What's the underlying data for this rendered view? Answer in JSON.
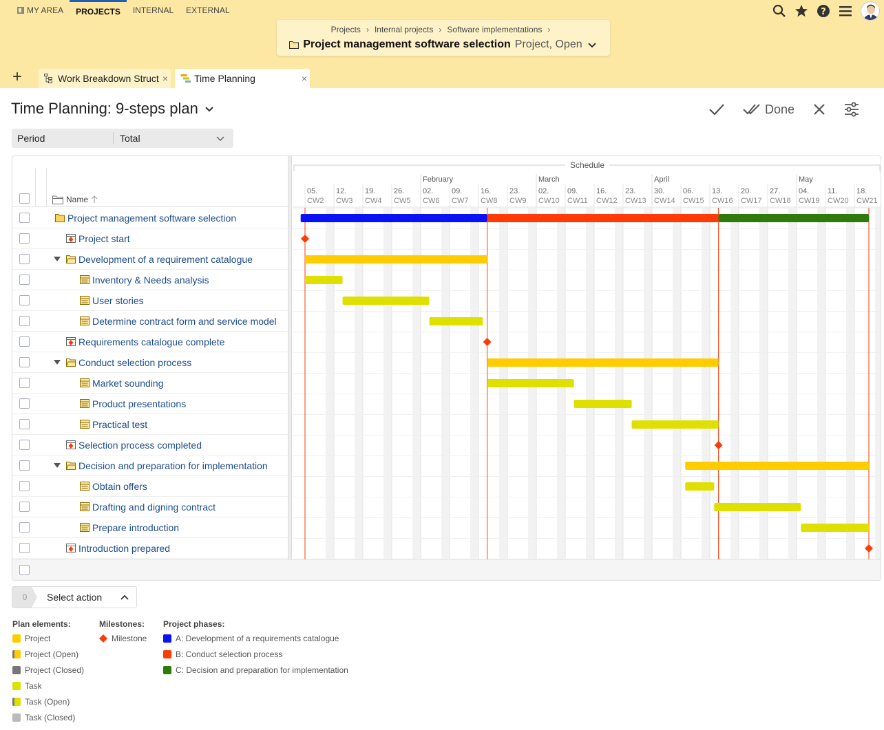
{
  "nav": {
    "items": [
      "MY AREA",
      "PROJECTS",
      "INTERNAL",
      "EXTERNAL"
    ],
    "active": "PROJECTS",
    "icons": [
      "search-icon",
      "star-icon",
      "help-icon",
      "menu-icon",
      "avatar"
    ]
  },
  "breadcrumb": {
    "items": [
      "Projects",
      "Internal projects",
      "Software implementations"
    ],
    "sep": "›",
    "title": "Project management software selection",
    "status": "Project, Open"
  },
  "tabs": [
    {
      "label": "Work Breakdown Struct",
      "close": "×"
    },
    {
      "label": "Time Planning",
      "close": "×"
    }
  ],
  "tab_add": "+",
  "view": {
    "title": "Time Planning: 9-steps plan",
    "done_label": "Done",
    "period_label": "Period",
    "period_value": "Total"
  },
  "grid": {
    "name_header": "Name",
    "schedule_label": "Schedule",
    "months": [
      {
        "label": "February",
        "week": 4
      },
      {
        "label": "March",
        "week": 8
      },
      {
        "label": "April",
        "week": 12
      },
      {
        "label": "May",
        "week": 17
      }
    ],
    "weeks": [
      {
        "d": "05.",
        "cw": "CW2"
      },
      {
        "d": "12.",
        "cw": "CW3"
      },
      {
        "d": "19.",
        "cw": "CW4"
      },
      {
        "d": "26.",
        "cw": "CW5"
      },
      {
        "d": "02.",
        "cw": "CW6"
      },
      {
        "d": "09.",
        "cw": "CW7"
      },
      {
        "d": "16.",
        "cw": "CW8"
      },
      {
        "d": "23.",
        "cw": "CW9"
      },
      {
        "d": "02.",
        "cw": "CW10"
      },
      {
        "d": "09.",
        "cw": "CW11"
      },
      {
        "d": "16.",
        "cw": "CW12"
      },
      {
        "d": "23.",
        "cw": "CW13"
      },
      {
        "d": "30.",
        "cw": "CW14"
      },
      {
        "d": "06.",
        "cw": "CW15"
      },
      {
        "d": "13.",
        "cw": "CW16"
      },
      {
        "d": "20.",
        "cw": "CW17"
      },
      {
        "d": "27.",
        "cw": "CW18"
      },
      {
        "d": "04.",
        "cw": "CW19"
      },
      {
        "d": "11.",
        "cw": "CW20"
      },
      {
        "d": "18.",
        "cw": "CW21"
      }
    ],
    "rows": [
      {
        "label": "Project management software selection",
        "kind": "project",
        "level": 0
      },
      {
        "label": "Project start",
        "kind": "milestone",
        "level": 1
      },
      {
        "label": "Development of a requirement catalogue",
        "kind": "group",
        "level": 1
      },
      {
        "label": "Inventory & Needs analysis",
        "kind": "task",
        "level": 2
      },
      {
        "label": "User stories",
        "kind": "task",
        "level": 2
      },
      {
        "label": "Determine contract form and service model",
        "kind": "task",
        "level": 2
      },
      {
        "label": "Requirements catalogue complete",
        "kind": "milestone",
        "level": 1
      },
      {
        "label": "Conduct selection process",
        "kind": "group",
        "level": 1
      },
      {
        "label": "Market sounding",
        "kind": "task",
        "level": 2
      },
      {
        "label": "Product presentations",
        "kind": "task",
        "level": 2
      },
      {
        "label": "Practical test",
        "kind": "task",
        "level": 2
      },
      {
        "label": "Selection process completed",
        "kind": "milestone",
        "level": 1
      },
      {
        "label": "Decision and preparation for implementation",
        "kind": "group",
        "level": 1
      },
      {
        "label": "Obtain offers",
        "kind": "task",
        "level": 2
      },
      {
        "label": "Drafting and digning contract",
        "kind": "task",
        "level": 2
      },
      {
        "label": "Prepare introduction",
        "kind": "task",
        "level": 2
      },
      {
        "label": "Introduction prepared",
        "kind": "milestone",
        "level": 1
      }
    ]
  },
  "chart_data": {
    "type": "gantt",
    "unit": "weeks from 05. (CW2)",
    "phases": [
      {
        "name": "A: Development of a requirements catalogue",
        "start": -0.15,
        "end": 6.3,
        "color": "#0a12f5"
      },
      {
        "name": "B: Conduct selection process",
        "start": 6.3,
        "end": 14.3,
        "color": "#ff3a06"
      },
      {
        "name": "C: Decision and preparation for implementation",
        "start": 14.3,
        "end": 19.5,
        "color": "#2e7a0b"
      }
    ],
    "phase_lines": [
      0,
      6.3,
      14.3,
      19.5
    ],
    "items": [
      {
        "row": 1,
        "type": "milestone",
        "at": 0
      },
      {
        "row": 2,
        "type": "project",
        "start": 0,
        "end": 6.3
      },
      {
        "row": 3,
        "type": "task",
        "start": 0,
        "end": 1.3
      },
      {
        "row": 4,
        "type": "task",
        "start": 1.3,
        "end": 4.3
      },
      {
        "row": 5,
        "type": "task",
        "start": 4.3,
        "end": 6.15
      },
      {
        "row": 6,
        "type": "milestone",
        "at": 6.3
      },
      {
        "row": 7,
        "type": "project",
        "start": 6.3,
        "end": 14.3
      },
      {
        "row": 8,
        "type": "task",
        "start": 6.3,
        "end": 9.3
      },
      {
        "row": 9,
        "type": "task",
        "start": 9.3,
        "end": 11.3
      },
      {
        "row": 10,
        "type": "task",
        "start": 11.3,
        "end": 14.3
      },
      {
        "row": 11,
        "type": "milestone",
        "at": 14.3
      },
      {
        "row": 12,
        "type": "project",
        "start": 13.15,
        "end": 19.5
      },
      {
        "row": 13,
        "type": "task",
        "start": 13.15,
        "end": 14.15
      },
      {
        "row": 14,
        "type": "task",
        "start": 14.15,
        "end": 17.15
      },
      {
        "row": 15,
        "type": "task",
        "start": 17.15,
        "end": 19.5
      },
      {
        "row": 16,
        "type": "milestone",
        "at": 19.5
      }
    ]
  },
  "selection": {
    "count": "0",
    "label": "Select action"
  },
  "legend": {
    "plan_title": "Plan elements:",
    "plan": [
      {
        "label": "Project",
        "color": "#ffcc00"
      },
      {
        "label": "Project (Open)",
        "color": "#ffcc00"
      },
      {
        "label": "Project (Closed)",
        "color": "#777777"
      },
      {
        "label": "Task",
        "color": "#dfe000"
      },
      {
        "label": "Task (Open)",
        "color": "#dfe000"
      },
      {
        "label": "Task (Closed)",
        "color": "#bbbbbb"
      }
    ],
    "milestones_title": "Milestones:",
    "milestone_label": "Milestone",
    "phases_title": "Project phases:",
    "phases": [
      {
        "label": "A: Development of a requirements catalogue",
        "color": "#0a12f5"
      },
      {
        "label": "B: Conduct selection process",
        "color": "#ff3a06"
      },
      {
        "label": "C: Decision and preparation for implementation",
        "color": "#2e7a0b"
      }
    ]
  }
}
